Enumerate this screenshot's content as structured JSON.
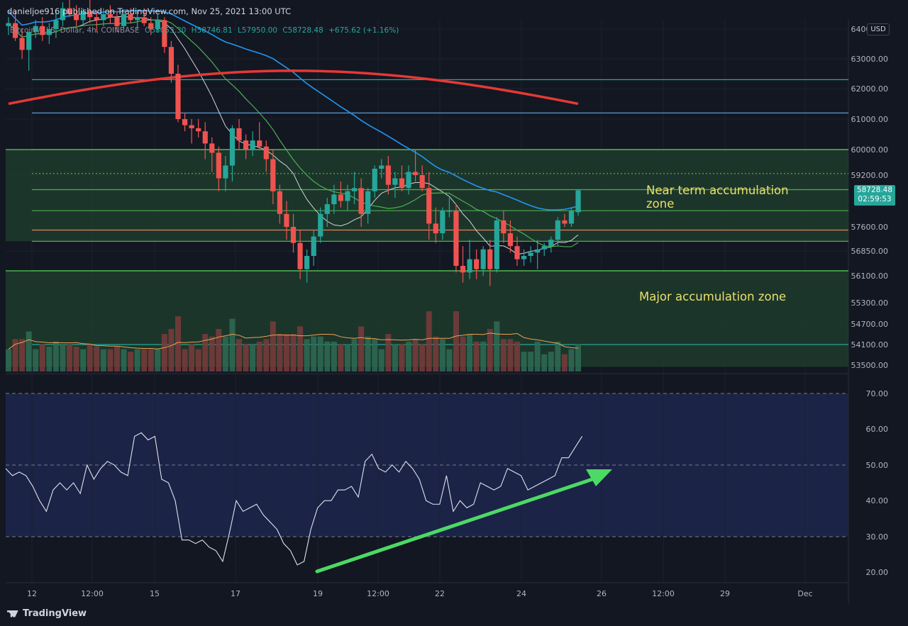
{
  "header": {
    "publisher": "danieljoe916 published on TradingView.com, Nov 25, 2021 13:00 UTC",
    "symbol": "Bitcoin / U.S. Dollar, 4h, COINBASE",
    "ohlc": {
      "open": "O58053.30",
      "high": "H58746.81",
      "low": "L57950.00",
      "close": "C58728.48"
    },
    "change": "+675.62 (+1.16%)"
  },
  "currency_badge": "USD",
  "last_price": {
    "price": "58728.48",
    "countdown": "02:59:53"
  },
  "footer": {
    "brand": "TradingView"
  },
  "colors": {
    "up": "#26a69a",
    "down": "#ef5350",
    "zone": "#1f3b2c",
    "zone_line": "#4caf50",
    "rsi_band": "#1b2347",
    "ma200": "#e53935",
    "ma50": "#2196f3",
    "ma20": "#4caf50",
    "ma10": "#d1d4dc",
    "vol_ma": "#f0a050",
    "arrow": "#4cd964",
    "text_annotation": "#e8e06a"
  },
  "chart_data": [
    {
      "type": "candlestick",
      "title": "Bitcoin / U.S. Dollar, 4h, COINBASE",
      "y_ticks": [
        "64000.00",
        "63000.00",
        "62000.00",
        "61000.00",
        "60000.00",
        "59200.00",
        "57600.00",
        "56850.00",
        "56100.00",
        "55300.00",
        "54700.00",
        "54100.00",
        "53500.00"
      ],
      "x_ticks": [
        "12",
        "12:00",
        "15",
        "17",
        "19",
        "12:00",
        "22",
        "24",
        "26",
        "12:00",
        "29",
        "Dec"
      ],
      "ylim": [
        53400,
        64200
      ],
      "grid": true,
      "horizontal_levels": [
        62300,
        61200,
        60000,
        59250,
        58750,
        58100,
        57500,
        57150,
        56250,
        54100
      ],
      "zones": [
        {
          "label": "Near term accumulation zone",
          "from": 57150,
          "to": 60000
        },
        {
          "label": "Major accumulation zone",
          "from": 53450,
          "to": 56250
        }
      ],
      "candles": [
        [
          64100,
          64400,
          63800,
          64200
        ],
        [
          64200,
          64600,
          63600,
          63700
        ],
        [
          63700,
          64000,
          63000,
          63300
        ],
        [
          63300,
          63900,
          62600,
          63900
        ],
        [
          63900,
          64300,
          63700,
          64100
        ],
        [
          64100,
          64400,
          63600,
          63800
        ],
        [
          63800,
          64200,
          63500,
          64000
        ],
        [
          64000,
          64600,
          63700,
          64300
        ],
        [
          64300,
          64900,
          64100,
          64700
        ],
        [
          64700,
          65200,
          64400,
          64500
        ],
        [
          64500,
          64800,
          64100,
          64300
        ],
        [
          64300,
          64700,
          64100,
          64600
        ],
        [
          64600,
          65000,
          64200,
          64400
        ],
        [
          64400,
          64600,
          63900,
          64300
        ],
        [
          64300,
          64700,
          64100,
          64500
        ],
        [
          64500,
          64800,
          64200,
          64400
        ],
        [
          64400,
          64600,
          63900,
          64100
        ],
        [
          64100,
          64600,
          64000,
          64500
        ],
        [
          64500,
          64700,
          64200,
          64300
        ],
        [
          64300,
          64600,
          64000,
          64400
        ],
        [
          64400,
          64700,
          64100,
          64200
        ],
        [
          64200,
          64400,
          63800,
          64000
        ],
        [
          64000,
          64500,
          63900,
          64300
        ],
        [
          64300,
          64400,
          63200,
          63400
        ],
        [
          63400,
          63600,
          62200,
          62500
        ],
        [
          62500,
          62800,
          60900,
          61000
        ],
        [
          61000,
          61200,
          60600,
          60800
        ],
        [
          60800,
          61000,
          60200,
          60700
        ],
        [
          60700,
          61000,
          60400,
          60600
        ],
        [
          60600,
          60900,
          59700,
          60200
        ],
        [
          60200,
          60400,
          59300,
          59900
        ],
        [
          59900,
          60100,
          58700,
          59100
        ],
        [
          59100,
          59800,
          58700,
          59500
        ],
        [
          59500,
          60800,
          59000,
          60700
        ],
        [
          60700,
          61000,
          60000,
          60300
        ],
        [
          60300,
          60500,
          59700,
          60000
        ],
        [
          60000,
          60600,
          59800,
          60300
        ],
        [
          60300,
          60900,
          60000,
          60100
        ],
        [
          60100,
          60300,
          59300,
          59700
        ],
        [
          59700,
          60000,
          58300,
          58700
        ],
        [
          58700,
          58900,
          57700,
          58000
        ],
        [
          58000,
          58400,
          57200,
          57600
        ],
        [
          57600,
          58000,
          56800,
          57100
        ],
        [
          57100,
          57500,
          56000,
          56300
        ],
        [
          56300,
          56900,
          55900,
          56700
        ],
        [
          56700,
          57500,
          56400,
          57300
        ],
        [
          57300,
          58200,
          57100,
          58000
        ],
        [
          58000,
          58500,
          57600,
          58300
        ],
        [
          58300,
          58900,
          58000,
          58600
        ],
        [
          58600,
          59000,
          58200,
          58400
        ],
        [
          58400,
          58900,
          58100,
          58700
        ],
        [
          58700,
          59300,
          58300,
          58800
        ],
        [
          58800,
          59100,
          57600,
          58000
        ],
        [
          58000,
          58800,
          57700,
          58700
        ],
        [
          58700,
          59500,
          58500,
          59400
        ],
        [
          59400,
          59700,
          59100,
          59500
        ],
        [
          59500,
          59800,
          58600,
          58900
        ],
        [
          58900,
          59300,
          58500,
          59100
        ],
        [
          59100,
          59500,
          58700,
          58800
        ],
        [
          58800,
          59500,
          58600,
          59300
        ],
        [
          59300,
          60000,
          59000,
          59200
        ],
        [
          59200,
          59500,
          58700,
          58800
        ],
        [
          58800,
          59300,
          57200,
          57700
        ],
        [
          57700,
          58200,
          57100,
          57400
        ],
        [
          57400,
          58200,
          57200,
          58100
        ],
        [
          58100,
          58500,
          57900,
          58100
        ],
        [
          58100,
          58300,
          56200,
          56400
        ],
        [
          56400,
          57000,
          55900,
          56200
        ],
        [
          56200,
          57200,
          56000,
          56600
        ],
        [
          56600,
          56900,
          56000,
          56300
        ],
        [
          56300,
          57000,
          56100,
          56900
        ],
        [
          56900,
          57200,
          55800,
          56300
        ],
        [
          56300,
          57900,
          56200,
          57800
        ],
        [
          57800,
          58100,
          57100,
          57400
        ],
        [
          57400,
          57800,
          56800,
          57000
        ],
        [
          57000,
          57300,
          56400,
          56600
        ],
        [
          56600,
          56900,
          56400,
          56700
        ],
        [
          56700,
          57000,
          56500,
          56800
        ],
        [
          56800,
          57200,
          56300,
          56900
        ],
        [
          56900,
          57100,
          56700,
          57000
        ],
        [
          57000,
          57300,
          56800,
          57200
        ],
        [
          57200,
          57900,
          57000,
          57800
        ],
        [
          57800,
          58000,
          57600,
          57700
        ],
        [
          57700,
          58200,
          57600,
          58100
        ],
        [
          58053.3,
          58746.81,
          57950,
          58728.48
        ]
      ],
      "volume_ma_visible": true
    },
    {
      "type": "line",
      "title": "RSI",
      "y_ticks": [
        "70.00",
        "60.00",
        "50.00",
        "40.00",
        "30.00",
        "20.00"
      ],
      "ylim": [
        17,
        75
      ],
      "band": [
        30,
        70
      ],
      "values": [
        49,
        47,
        48,
        47,
        44,
        40,
        37,
        43,
        45,
        43,
        45,
        42,
        50,
        46,
        49,
        51,
        50,
        48,
        47,
        58,
        59,
        57,
        58,
        46,
        45,
        40,
        29,
        29,
        28,
        29,
        27,
        26,
        23,
        31,
        40,
        37,
        38,
        39,
        36,
        34,
        32,
        28,
        26,
        22,
        23,
        32,
        38,
        40,
        40,
        43,
        43,
        44,
        41,
        51,
        53,
        49,
        48,
        50,
        48,
        51,
        49,
        46,
        40,
        39,
        39,
        47,
        37,
        40,
        38,
        39,
        45,
        44,
        43,
        44,
        49,
        48,
        47,
        43,
        44,
        45,
        46,
        47,
        52,
        52,
        55,
        58
      ]
    }
  ]
}
